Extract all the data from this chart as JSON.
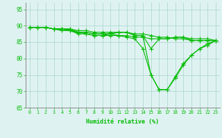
{
  "series": [
    [
      89.5,
      89.5,
      89.5,
      89.0,
      88.5,
      88.5,
      88.0,
      88.0,
      87.5,
      87.5,
      87.5,
      88.0,
      88.0,
      87.0,
      87.0,
      83.0,
      86.0,
      86.0,
      86.5,
      86.5,
      85.5,
      85.5,
      85.5,
      85.5
    ],
    [
      89.5,
      89.5,
      89.5,
      89.0,
      89.0,
      89.0,
      88.5,
      88.5,
      88.0,
      88.0,
      88.0,
      88.0,
      88.0,
      87.5,
      87.5,
      87.0,
      86.5,
      86.5,
      86.0,
      86.0,
      85.5,
      85.5,
      85.5,
      85.5
    ],
    [
      89.5,
      89.5,
      89.5,
      89.0,
      89.0,
      89.0,
      88.0,
      88.0,
      87.5,
      87.5,
      87.5,
      88.0,
      88.0,
      87.0,
      87.0,
      75.0,
      70.5,
      70.5,
      74.5,
      78.5,
      81.0,
      83.0,
      84.0,
      85.5
    ],
    [
      89.5,
      89.5,
      89.5,
      89.0,
      89.0,
      88.5,
      88.0,
      87.5,
      87.0,
      87.0,
      87.0,
      87.0,
      87.0,
      86.5,
      86.5,
      86.0,
      86.0,
      86.0,
      86.5,
      86.5,
      86.0,
      86.0,
      86.0,
      85.5
    ],
    [
      89.5,
      89.5,
      89.5,
      89.0,
      89.0,
      88.5,
      87.5,
      87.5,
      87.0,
      87.0,
      87.5,
      87.0,
      86.5,
      86.0,
      83.0,
      75.0,
      70.5,
      70.5,
      74.0,
      78.0,
      81.0,
      83.0,
      84.5,
      85.5
    ]
  ],
  "x": [
    0,
    1,
    2,
    3,
    4,
    5,
    6,
    7,
    8,
    9,
    10,
    11,
    12,
    13,
    14,
    15,
    16,
    17,
    18,
    19,
    20,
    21,
    22,
    23
  ],
  "xlabel": "Humidité relative (%)",
  "ylim": [
    65,
    97
  ],
  "xlim": [
    -0.5,
    23.5
  ],
  "yticks": [
    65,
    70,
    75,
    80,
    85,
    90,
    95
  ],
  "xtick_labels": [
    "0",
    "1",
    "2",
    "3",
    "4",
    "5",
    "6",
    "7",
    "8",
    "9",
    "10",
    "11",
    "12",
    "13",
    "14",
    "15",
    "16",
    "17",
    "18",
    "19",
    "20",
    "21",
    "22",
    "23"
  ],
  "line_color": "#00bb00",
  "bg_color": "#dff2f2",
  "grid_color": "#b0d8d0",
  "marker": "+",
  "marker_size": 4.0,
  "line_width": 0.8
}
